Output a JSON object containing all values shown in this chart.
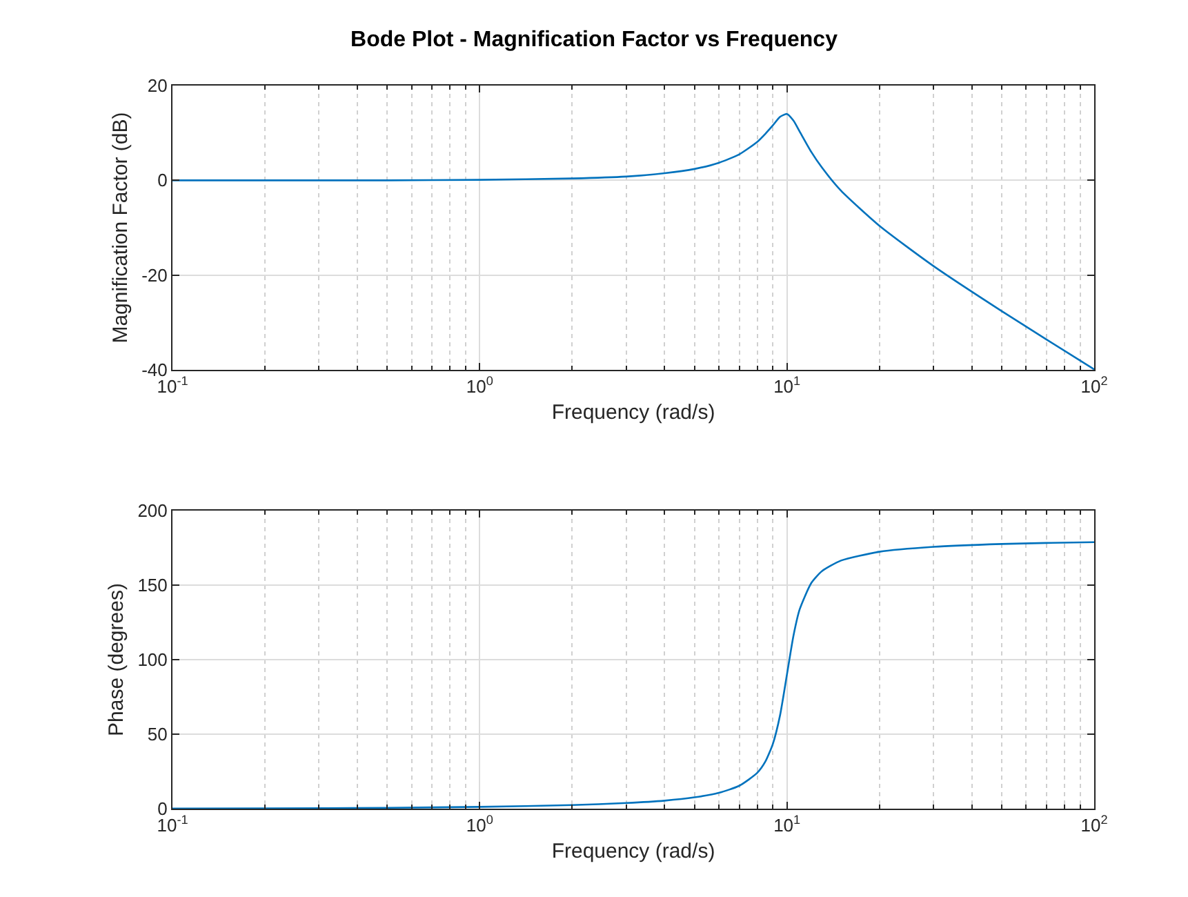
{
  "chart_data": [
    {
      "type": "line",
      "title": "Bode Plot - Magnification Factor vs Frequency",
      "xlabel": "Frequency (rad/s)",
      "ylabel": "Magnification Factor (dB)",
      "color": "#0072bd",
      "log": "x",
      "grid": true,
      "x": [
        0.1,
        0.2,
        0.5,
        1,
        2,
        3,
        4,
        5,
        6,
        7,
        8,
        8.5,
        9,
        9.5,
        10,
        10.5,
        11,
        12,
        13,
        15,
        20,
        30,
        50,
        70,
        100
      ],
      "values": [
        0,
        0,
        0,
        0.1,
        0.4,
        0.8,
        1.5,
        2.4,
        3.7,
        5.5,
        8.1,
        9.8,
        11.6,
        13.4,
        14,
        12.6,
        10.3,
        6,
        2.7,
        -2.2,
        -9.6,
        -18.1,
        -27.6,
        -33.6,
        -39.9
      ],
      "xlim": [
        0.1,
        100
      ],
      "xticks": [
        {
          "value": 0.1,
          "label": "10$^{-1}$"
        },
        {
          "value": 1,
          "label": "10$^{0}$"
        },
        {
          "value": 10,
          "label": "10$^{1}$"
        },
        {
          "value": 100,
          "label": "10$^{2}$"
        }
      ],
      "ylim": [
        -40,
        20
      ],
      "yticks": [
        -40,
        -20,
        0,
        20
      ]
    },
    {
      "type": "line",
      "xlabel": "Frequency (rad/s)",
      "ylabel": "Phase (degrees)",
      "color": "#0072bd",
      "log": "x",
      "grid": true,
      "x": [
        0.1,
        0.2,
        0.5,
        1,
        2,
        3,
        4,
        5,
        6,
        7,
        8,
        8.5,
        9,
        9.5,
        10,
        10.5,
        11,
        12,
        13,
        15,
        20,
        30,
        50,
        70,
        100
      ],
      "values": [
        0.1,
        0.2,
        0.6,
        1.2,
        2.4,
        3.8,
        5.4,
        7.6,
        10.6,
        15.4,
        24,
        31.5,
        43.5,
        62.8,
        90,
        116,
        133.7,
        151.4,
        159.4,
        166.5,
        172.4,
        175.7,
        177.6,
        178.3,
        178.8
      ],
      "xlim": [
        0.1,
        100
      ],
      "xticks": [
        {
          "value": 0.1,
          "label": "10$^{-1}$"
        },
        {
          "value": 1,
          "label": "10$^{0}$"
        },
        {
          "value": 10,
          "label": "10$^{1}$"
        },
        {
          "value": 100,
          "label": "10$^{2}$"
        }
      ],
      "ylim": [
        0,
        200
      ],
      "yticks": [
        0,
        50,
        100,
        150,
        200
      ]
    }
  ]
}
